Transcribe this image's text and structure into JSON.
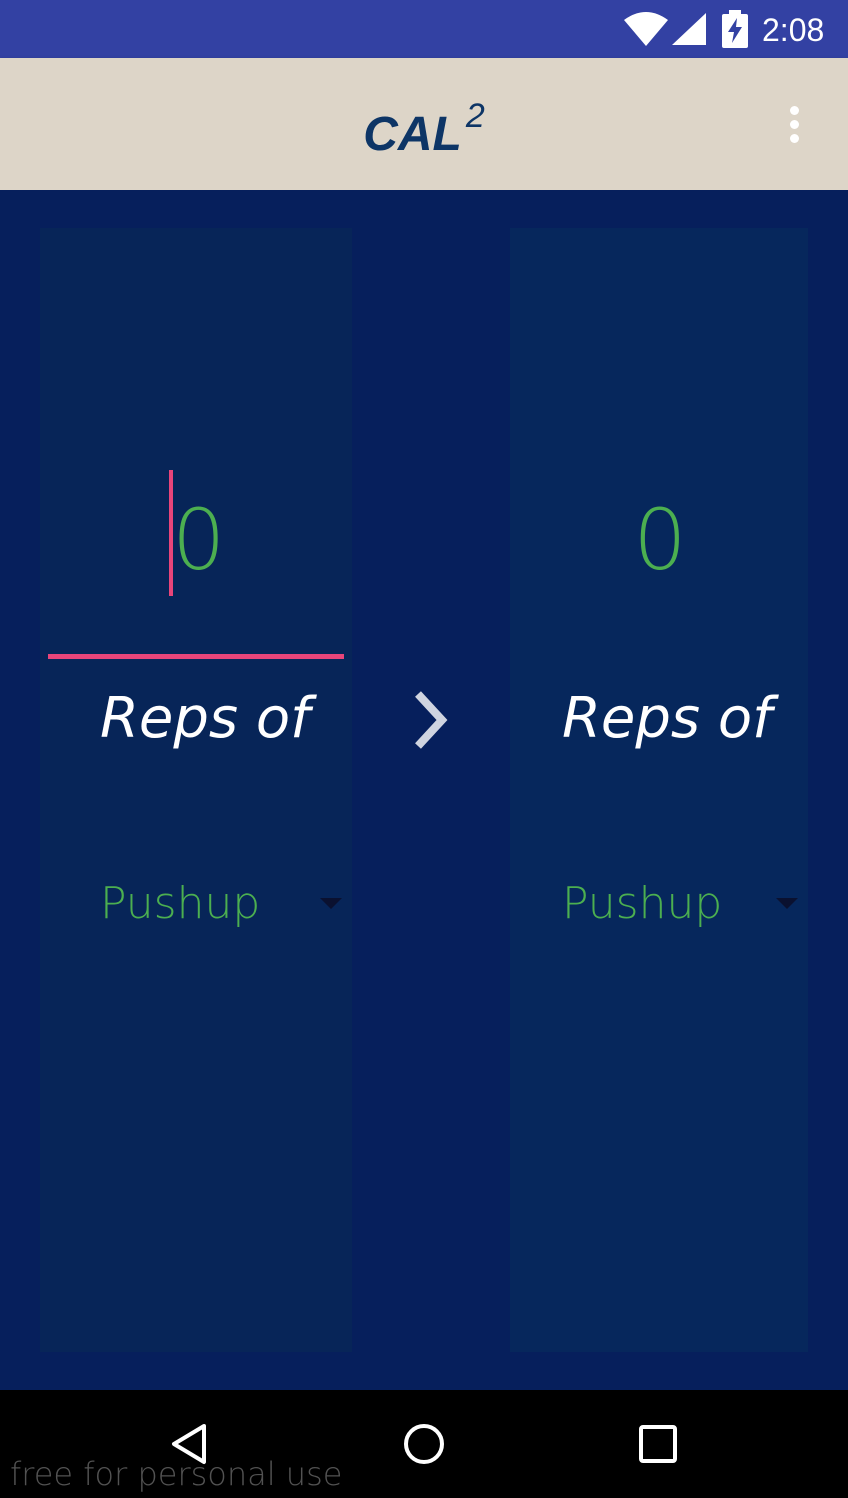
{
  "status_bar": {
    "time": "2:08",
    "icons": [
      "wifi-icon",
      "signal-icon",
      "battery-charging-icon"
    ]
  },
  "app_bar": {
    "title": "CAL",
    "title_superscript": "2",
    "menu_icon": "overflow-menu-icon"
  },
  "converter": {
    "left": {
      "reps_value": "0",
      "reps_label": "Reps of",
      "exercise": "Pushup"
    },
    "arrow_icon": "chevron-right-icon",
    "right": {
      "reps_value": "0",
      "reps_label": "Reps of",
      "exercise": "Pushup"
    }
  },
  "nav_bar": {
    "icons": [
      "back-icon",
      "home-icon",
      "recents-icon"
    ]
  },
  "watermark": "free for personal use",
  "colors": {
    "status_bar": "#3341a3",
    "app_bar": "#ddd5c8",
    "title": "#0d3566",
    "background": "#061f5c",
    "panel": "#072558",
    "value_green": "#4caf50",
    "accent_pink": "#e8457a"
  }
}
